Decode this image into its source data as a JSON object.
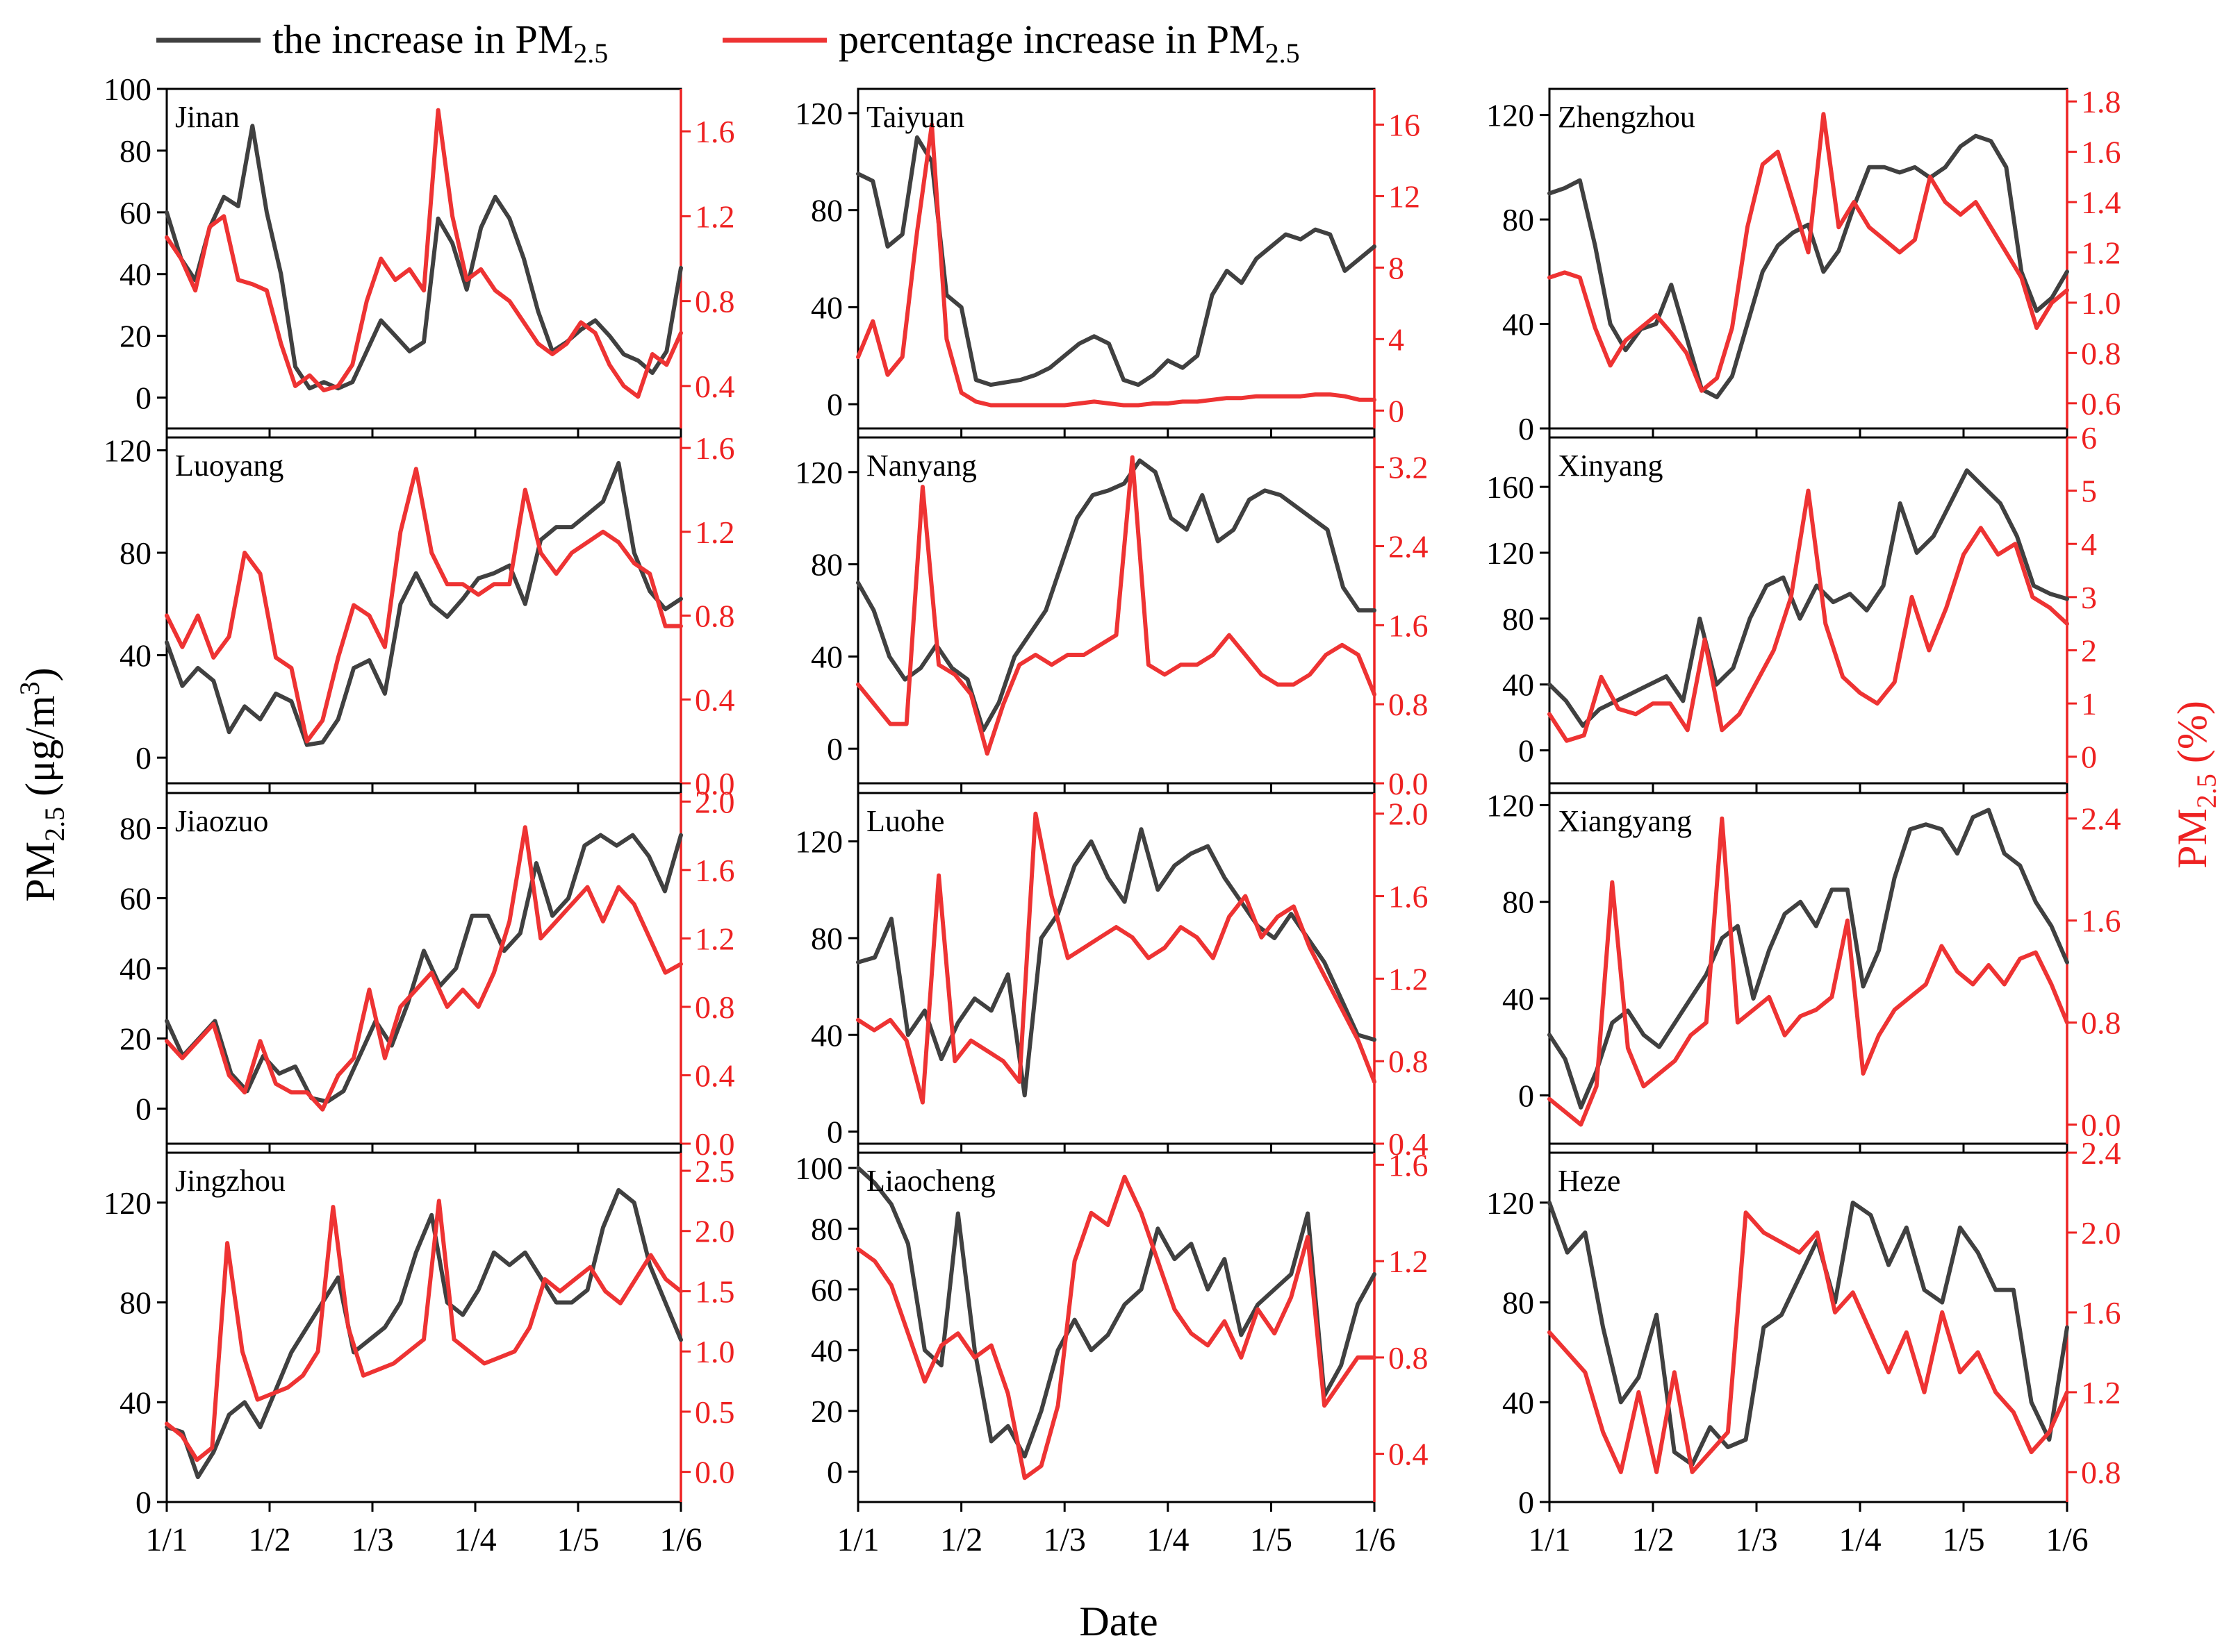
{
  "legend": {
    "increase_label": "the increase in PM",
    "increase_sub": "2.5",
    "pct_label": "percentage increase in PM",
    "pct_sub": "2.5"
  },
  "axes": {
    "xlabel": "Date",
    "ylabel_left": "PM",
    "ylabel_left_sub": "2.5",
    "ylabel_left_unit": " (μg/m",
    "ylabel_left_sup": "3",
    "ylabel_left_end": ")",
    "ylabel_right": "PM",
    "ylabel_right_sub": "2.5",
    "ylabel_right_unit": " (%)",
    "xticks": [
      "1/1",
      "1/2",
      "1/3",
      "1/4",
      "1/5",
      "1/6"
    ]
  },
  "colors": {
    "increase": "#404040",
    "pct": "#ee3333",
    "axis": "#000000",
    "pct_axis": "#ee2222"
  },
  "chart_data": [
    {
      "type": "line",
      "city": "Jinan",
      "left": {
        "ylim": [
          -10,
          100
        ],
        "ticks": [
          0,
          20,
          40,
          60,
          80,
          100
        ],
        "values": [
          60,
          45,
          38,
          55,
          65,
          62,
          88,
          60,
          40,
          10,
          3,
          5,
          3,
          5,
          15,
          25,
          20,
          15,
          18,
          58,
          50,
          35,
          55,
          65,
          58,
          45,
          28,
          15,
          18,
          22,
          25,
          20,
          14,
          12,
          8,
          15,
          42
        ]
      },
      "right": {
        "ylim": [
          0.2,
          1.8
        ],
        "ticks": [
          0.4,
          0.8,
          1.2,
          1.6
        ],
        "values": [
          1.1,
          1.0,
          0.85,
          1.15,
          1.2,
          0.9,
          0.88,
          0.85,
          0.6,
          0.4,
          0.45,
          0.38,
          0.4,
          0.5,
          0.8,
          1.0,
          0.9,
          0.95,
          0.85,
          1.7,
          1.2,
          0.9,
          0.95,
          0.85,
          0.8,
          0.7,
          0.6,
          0.55,
          0.6,
          0.7,
          0.65,
          0.5,
          0.4,
          0.35,
          0.55,
          0.5,
          0.65
        ]
      }
    },
    {
      "type": "line",
      "city": "Taiyuan",
      "left": {
        "ylim": [
          -10,
          130
        ],
        "ticks": [
          0,
          40,
          80,
          120
        ],
        "values": [
          95,
          92,
          65,
          70,
          110,
          100,
          45,
          40,
          10,
          8,
          9,
          10,
          12,
          15,
          20,
          25,
          28,
          25,
          10,
          8,
          12,
          18,
          15,
          20,
          45,
          55,
          50,
          60,
          65,
          70,
          68,
          72,
          70,
          55,
          60,
          65
        ]
      },
      "right": {
        "ylim": [
          -1,
          18
        ],
        "ticks": [
          0,
          4,
          8,
          12,
          16
        ],
        "values": [
          3,
          5,
          2,
          3,
          10,
          16,
          4,
          1,
          0.5,
          0.3,
          0.3,
          0.3,
          0.3,
          0.3,
          0.3,
          0.4,
          0.5,
          0.4,
          0.3,
          0.3,
          0.4,
          0.4,
          0.5,
          0.5,
          0.6,
          0.7,
          0.7,
          0.8,
          0.8,
          0.8,
          0.8,
          0.9,
          0.9,
          0.8,
          0.6,
          0.6
        ]
      }
    },
    {
      "type": "line",
      "city": "Zhengzhou",
      "left": {
        "ylim": [
          0,
          130
        ],
        "ticks": [
          0,
          40,
          80,
          120
        ],
        "values": [
          90,
          92,
          95,
          70,
          40,
          30,
          38,
          40,
          55,
          35,
          15,
          12,
          20,
          40,
          60,
          70,
          75,
          78,
          60,
          68,
          85,
          100,
          100,
          98,
          100,
          96,
          100,
          108,
          112,
          110,
          100,
          60,
          45,
          50,
          60
        ]
      },
      "right": {
        "ylim": [
          0.5,
          1.85
        ],
        "ticks": [
          0.6,
          0.8,
          1.0,
          1.2,
          1.4,
          1.6,
          1.8
        ],
        "values": [
          1.1,
          1.12,
          1.1,
          0.9,
          0.75,
          0.85,
          0.9,
          0.95,
          0.88,
          0.8,
          0.65,
          0.7,
          0.9,
          1.3,
          1.55,
          1.6,
          1.4,
          1.2,
          1.75,
          1.3,
          1.4,
          1.3,
          1.25,
          1.2,
          1.25,
          1.5,
          1.4,
          1.35,
          1.4,
          1.3,
          1.2,
          1.1,
          0.9,
          1.0,
          1.05
        ]
      }
    },
    {
      "type": "line",
      "city": "Luoyang",
      "left": {
        "ylim": [
          -10,
          125
        ],
        "ticks": [
          0,
          40,
          80,
          120
        ],
        "values": [
          45,
          28,
          35,
          30,
          10,
          20,
          15,
          25,
          22,
          5,
          6,
          15,
          35,
          38,
          25,
          60,
          72,
          60,
          55,
          62,
          70,
          72,
          75,
          60,
          85,
          90,
          90,
          95,
          100,
          115,
          80,
          65,
          58,
          62
        ]
      },
      "right": {
        "ylim": [
          0,
          1.65
        ],
        "ticks": [
          0.0,
          0.4,
          0.8,
          1.2,
          1.6
        ],
        "values": [
          0.8,
          0.65,
          0.8,
          0.6,
          0.7,
          1.1,
          1.0,
          0.6,
          0.55,
          0.2,
          0.3,
          0.6,
          0.85,
          0.8,
          0.65,
          1.2,
          1.5,
          1.1,
          0.95,
          0.95,
          0.9,
          0.95,
          0.95,
          1.4,
          1.1,
          1.0,
          1.1,
          1.15,
          1.2,
          1.15,
          1.05,
          1.0,
          0.75,
          0.75
        ]
      }
    },
    {
      "type": "line",
      "city": "Nanyang",
      "left": {
        "ylim": [
          -15,
          135
        ],
        "ticks": [
          0,
          40,
          80,
          120
        ],
        "values": [
          72,
          60,
          40,
          30,
          35,
          45,
          35,
          30,
          8,
          20,
          40,
          50,
          60,
          80,
          100,
          110,
          112,
          115,
          125,
          120,
          100,
          95,
          110,
          90,
          95,
          108,
          112,
          110,
          105,
          100,
          95,
          70,
          60,
          60
        ]
      },
      "right": {
        "ylim": [
          0,
          3.5
        ],
        "ticks": [
          0.0,
          0.8,
          1.6,
          2.4,
          3.2
        ],
        "values": [
          1.0,
          0.8,
          0.6,
          0.6,
          3.0,
          1.2,
          1.1,
          0.9,
          0.3,
          0.8,
          1.2,
          1.3,
          1.2,
          1.3,
          1.3,
          1.4,
          1.5,
          3.3,
          1.2,
          1.1,
          1.2,
          1.2,
          1.3,
          1.5,
          1.3,
          1.1,
          1.0,
          1.0,
          1.1,
          1.3,
          1.4,
          1.3,
          0.9
        ]
      }
    },
    {
      "type": "line",
      "city": "Xinyang",
      "left": {
        "ylim": [
          -20,
          190
        ],
        "ticks": [
          0,
          40,
          80,
          120,
          160
        ],
        "values": [
          40,
          30,
          15,
          25,
          30,
          35,
          40,
          45,
          30,
          80,
          40,
          50,
          80,
          100,
          105,
          80,
          100,
          90,
          95,
          85,
          100,
          150,
          120,
          130,
          150,
          170,
          160,
          150,
          130,
          100,
          95,
          92
        ]
      },
      "right": {
        "ylim": [
          -0.5,
          6
        ],
        "ticks": [
          0,
          1,
          2,
          3,
          4,
          5,
          6
        ],
        "values": [
          0.8,
          0.3,
          0.4,
          1.5,
          0.9,
          0.8,
          1.0,
          1.0,
          0.5,
          2.2,
          0.5,
          0.8,
          1.4,
          2.0,
          3.0,
          5.0,
          2.5,
          1.5,
          1.2,
          1.0,
          1.4,
          3.0,
          2.0,
          2.8,
          3.8,
          4.3,
          3.8,
          4.0,
          3.0,
          2.8,
          2.5
        ]
      }
    },
    {
      "type": "line",
      "city": "Jiaozuo",
      "left": {
        "ylim": [
          -10,
          90
        ],
        "ticks": [
          0,
          20,
          40,
          60,
          80
        ],
        "values": [
          25,
          15,
          20,
          25,
          10,
          5,
          15,
          10,
          12,
          3,
          2,
          5,
          15,
          25,
          18,
          30,
          45,
          35,
          40,
          55,
          55,
          45,
          50,
          70,
          55,
          60,
          75,
          78,
          75,
          78,
          72,
          62,
          78
        ]
      },
      "right": {
        "ylim": [
          0,
          2.05
        ],
        "ticks": [
          0.0,
          0.4,
          0.8,
          1.2,
          1.6,
          2.0
        ],
        "values": [
          0.6,
          0.5,
          0.6,
          0.7,
          0.4,
          0.3,
          0.6,
          0.35,
          0.3,
          0.3,
          0.2,
          0.4,
          0.5,
          0.9,
          0.5,
          0.8,
          0.9,
          1.0,
          0.8,
          0.9,
          0.8,
          1.0,
          1.3,
          1.85,
          1.2,
          1.3,
          1.4,
          1.5,
          1.3,
          1.5,
          1.4,
          1.2,
          1.0,
          1.05
        ]
      }
    },
    {
      "type": "line",
      "city": "Luohe",
      "left": {
        "ylim": [
          -5,
          140
        ],
        "ticks": [
          0,
          40,
          80,
          120
        ],
        "values": [
          70,
          72,
          88,
          40,
          50,
          30,
          45,
          55,
          50,
          65,
          15,
          80,
          90,
          110,
          120,
          105,
          95,
          125,
          100,
          110,
          115,
          118,
          105,
          95,
          85,
          80,
          90,
          80,
          70,
          55,
          40,
          38
        ]
      },
      "right": {
        "ylim": [
          0.4,
          2.1
        ],
        "ticks": [
          0.4,
          0.8,
          1.2,
          1.6,
          2.0
        ],
        "values": [
          1.0,
          0.95,
          1.0,
          0.9,
          0.6,
          1.7,
          0.8,
          0.9,
          0.85,
          0.8,
          0.7,
          2.0,
          1.6,
          1.3,
          1.35,
          1.4,
          1.45,
          1.4,
          1.3,
          1.35,
          1.45,
          1.4,
          1.3,
          1.5,
          1.6,
          1.4,
          1.5,
          1.55,
          1.35,
          1.2,
          1.05,
          0.9,
          0.7
        ]
      }
    },
    {
      "type": "line",
      "city": "Xiangyang",
      "left": {
        "ylim": [
          -20,
          125
        ],
        "ticks": [
          0,
          40,
          80,
          120
        ],
        "values": [
          25,
          15,
          -5,
          10,
          30,
          35,
          25,
          20,
          30,
          40,
          50,
          65,
          70,
          40,
          60,
          75,
          80,
          70,
          85,
          85,
          45,
          60,
          90,
          110,
          112,
          110,
          100,
          115,
          118,
          100,
          95,
          80,
          70,
          55
        ]
      },
      "right": {
        "ylim": [
          -0.15,
          2.6
        ],
        "ticks": [
          0.0,
          0.8,
          1.6,
          2.4
        ],
        "values": [
          0.2,
          0.1,
          0.0,
          0.3,
          1.9,
          0.6,
          0.3,
          0.4,
          0.5,
          0.7,
          0.8,
          2.4,
          0.8,
          0.9,
          1.0,
          0.7,
          0.85,
          0.9,
          1.0,
          1.6,
          0.4,
          0.7,
          0.9,
          1.0,
          1.1,
          1.4,
          1.2,
          1.1,
          1.25,
          1.1,
          1.3,
          1.35,
          1.1,
          0.8
        ]
      }
    },
    {
      "type": "line",
      "city": "Jingzhou",
      "left": {
        "ylim": [
          0,
          140
        ],
        "ticks": [
          0,
          40,
          80,
          120
        ],
        "values": [
          30,
          28,
          10,
          20,
          35,
          40,
          30,
          45,
          60,
          70,
          80,
          90,
          60,
          65,
          70,
          80,
          100,
          115,
          80,
          75,
          85,
          100,
          95,
          100,
          90,
          80,
          80,
          85,
          110,
          125,
          120,
          95,
          80,
          65
        ]
      },
      "right": {
        "ylim": [
          -0.25,
          2.65
        ],
        "ticks": [
          0.0,
          0.5,
          1.0,
          1.5,
          2.0,
          2.5
        ],
        "values": [
          0.4,
          0.3,
          0.1,
          0.2,
          1.9,
          1.0,
          0.6,
          0.65,
          0.7,
          0.8,
          1.0,
          2.2,
          1.2,
          0.8,
          0.85,
          0.9,
          1.0,
          1.1,
          2.25,
          1.1,
          1.0,
          0.9,
          0.95,
          1.0,
          1.2,
          1.6,
          1.5,
          1.6,
          1.7,
          1.5,
          1.4,
          1.6,
          1.8,
          1.6,
          1.5
        ]
      }
    },
    {
      "type": "line",
      "city": "Liaocheng",
      "left": {
        "ylim": [
          -10,
          105
        ],
        "ticks": [
          0,
          20,
          40,
          60,
          80,
          100
        ],
        "values": [
          100,
          95,
          88,
          75,
          40,
          35,
          85,
          40,
          10,
          15,
          5,
          20,
          40,
          50,
          40,
          45,
          55,
          60,
          80,
          70,
          75,
          60,
          70,
          45,
          55,
          60,
          65,
          85,
          25,
          35,
          55,
          65
        ]
      },
      "right": {
        "ylim": [
          0.2,
          1.65
        ],
        "ticks": [
          0.4,
          0.8,
          1.2,
          1.6
        ],
        "values": [
          1.25,
          1.2,
          1.1,
          0.9,
          0.7,
          0.85,
          0.9,
          0.8,
          0.85,
          0.65,
          0.3,
          0.35,
          0.6,
          1.2,
          1.4,
          1.35,
          1.55,
          1.4,
          1.2,
          1.0,
          0.9,
          0.85,
          0.95,
          0.8,
          1.0,
          0.9,
          1.05,
          1.3,
          0.6,
          0.7,
          0.8,
          0.8
        ]
      }
    },
    {
      "type": "line",
      "city": "Heze",
      "left": {
        "ylim": [
          0,
          140
        ],
        "ticks": [
          0,
          40,
          80,
          120
        ],
        "values": [
          120,
          100,
          108,
          70,
          40,
          50,
          75,
          20,
          15,
          30,
          22,
          25,
          70,
          75,
          90,
          105,
          80,
          120,
          115,
          95,
          110,
          85,
          80,
          110,
          100,
          85,
          85,
          40,
          25,
          70
        ]
      },
      "right": {
        "ylim": [
          0.65,
          2.4
        ],
        "ticks": [
          0.8,
          1.2,
          1.6,
          2.0,
          2.4
        ],
        "values": [
          1.5,
          1.4,
          1.3,
          1.0,
          0.8,
          1.2,
          0.8,
          1.3,
          0.8,
          0.9,
          1.0,
          2.1,
          2.0,
          1.95,
          1.9,
          2.0,
          1.6,
          1.7,
          1.5,
          1.3,
          1.5,
          1.2,
          1.6,
          1.3,
          1.4,
          1.2,
          1.1,
          0.9,
          1.0,
          1.2
        ]
      }
    }
  ]
}
